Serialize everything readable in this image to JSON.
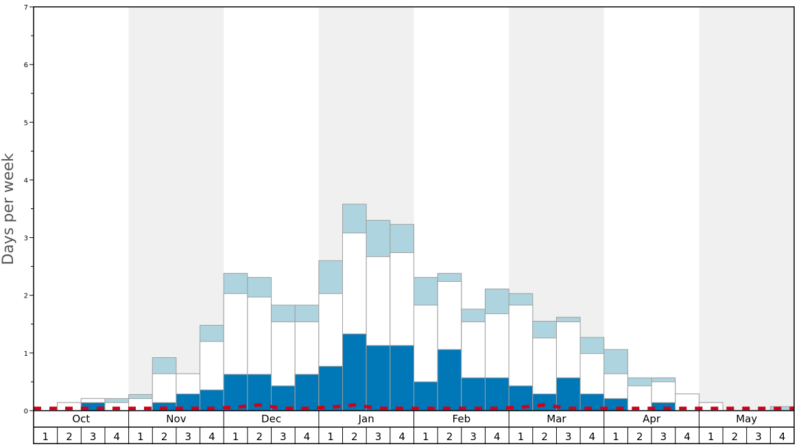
{
  "chart_data": {
    "type": "bar",
    "ylabel": "Days per week",
    "ylim": [
      0,
      7
    ],
    "y_ticks": [
      "0",
      "1",
      "2",
      "3",
      "4",
      "5",
      "6",
      "7"
    ],
    "months": [
      "Oct",
      "Nov",
      "Dec",
      "Jan",
      "Feb",
      "Mar",
      "Apr",
      "May"
    ],
    "week_labels": [
      "1",
      "2",
      "3",
      "4",
      "1",
      "2",
      "3",
      "4",
      "1",
      "2",
      "3",
      "4",
      "1",
      "2",
      "3",
      "4",
      "1",
      "2",
      "3",
      "4",
      "1",
      "2",
      "3",
      "4",
      "1",
      "2",
      "3",
      "4",
      "1",
      "2",
      "3",
      "4"
    ],
    "series": [
      {
        "values": [
          0,
          0,
          0.14,
          0,
          0,
          0.14,
          0.29,
          0.36,
          0.63,
          0.63,
          0.43,
          0.63,
          0.77,
          1.33,
          1.13,
          1.13,
          0.5,
          1.06,
          0.57,
          0.57,
          0.43,
          0.29,
          0.57,
          0.29,
          0.21,
          0,
          0.14,
          0,
          0,
          0,
          0,
          0
        ]
      },
      {
        "values": [
          0,
          0.14,
          0.21,
          0.14,
          0.21,
          0.64,
          0.64,
          1.2,
          2.03,
          1.97,
          1.54,
          1.54,
          2.03,
          3.08,
          2.67,
          2.74,
          1.83,
          2.24,
          1.54,
          1.68,
          1.83,
          1.26,
          1.54,
          0.99,
          0.64,
          0.43,
          0.5,
          0.29,
          0.14,
          0,
          0,
          0
        ]
      },
      {
        "values": [
          0,
          0.14,
          0.21,
          0.21,
          0.28,
          0.92,
          0.64,
          1.48,
          2.38,
          2.31,
          1.83,
          1.83,
          2.6,
          3.58,
          3.3,
          3.23,
          2.31,
          2.38,
          1.76,
          2.11,
          2.03,
          1.55,
          1.62,
          1.27,
          1.06,
          0.57,
          0.57,
          0.29,
          0.14,
          0,
          0,
          0.07
        ]
      }
    ],
    "average_line": [
      0.04,
      0.04,
      0.04,
      0.04,
      0.04,
      0.04,
      0.04,
      0.04,
      0.06,
      0.1,
      0.04,
      0.04,
      0.06,
      0.1,
      0.04,
      0.04,
      0.04,
      0.04,
      0.04,
      0.04,
      0.06,
      0.1,
      0.04,
      0.04,
      0.04,
      0.04,
      0.04,
      0.04,
      0.04,
      0.04,
      0.04,
      0.04
    ],
    "colors": {
      "dark_bar": "#0077b6",
      "mid_bar": "#ffffff",
      "light_bar": "#aed4e0",
      "bar_stroke": "#9e9e9e",
      "shade": "#f0f0f0",
      "average_line": "#d0021b"
    }
  }
}
